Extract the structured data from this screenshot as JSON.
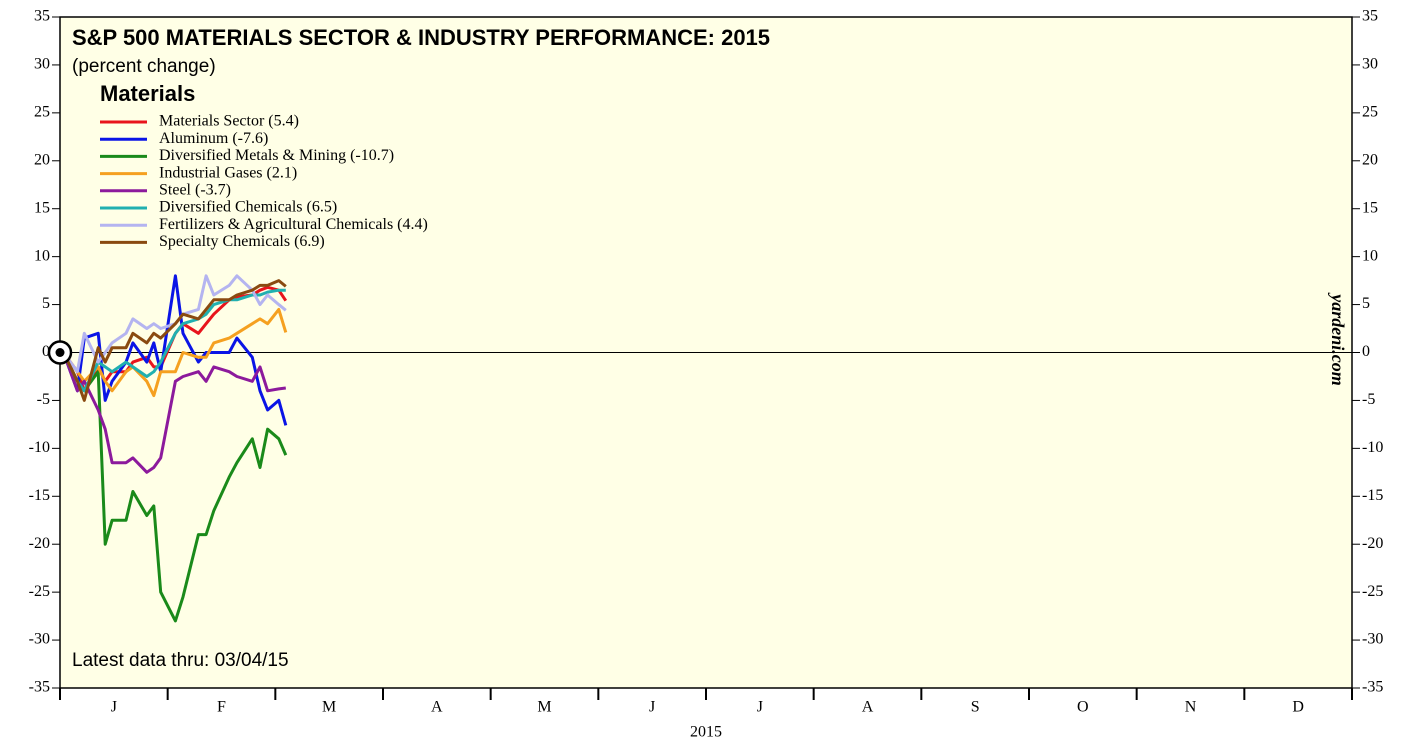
{
  "chart_data": {
    "type": "line",
    "title": "S&P 500 MATERIALS SECTOR & INDUSTRY PERFORMANCE: 2015",
    "subtitle": "(percent change)",
    "legend_title": "Materials",
    "annotation": "Latest data thru: 03/04/15",
    "watermark": "yardeni.com",
    "x_label": "2015",
    "categories": [
      "J",
      "F",
      "M",
      "A",
      "M",
      "J",
      "J",
      "A",
      "S",
      "O",
      "N",
      "D"
    ],
    "x": [
      "01/02/15",
      "01/06/15",
      "01/08/15",
      "01/12/15",
      "01/14/15",
      "01/16/15",
      "01/20/15",
      "01/22/15",
      "01/26/15",
      "01/28/15",
      "01/30/15",
      "02/03/15",
      "02/05/15",
      "02/09/15",
      "02/11/15",
      "02/13/15",
      "02/17/15",
      "02/19/15",
      "02/23/15",
      "02/25/15",
      "02/27/15",
      "03/02/15",
      "03/04/15"
    ],
    "series": [
      {
        "name": "Materials Sector (5.4)",
        "color": "#e8141c",
        "values": [
          0,
          -2,
          -4,
          -1.5,
          -3,
          -2,
          -2,
          -1,
          -0.5,
          -1.5,
          -1.5,
          2,
          3,
          2,
          3,
          4,
          5.5,
          5.8,
          6,
          6.5,
          6.8,
          6.5,
          5.4
        ]
      },
      {
        "name": "Aluminum (-7.6)",
        "color": "#0a14e6",
        "values": [
          0,
          -4,
          1.5,
          2,
          -5,
          -3,
          -1,
          1,
          -1,
          1,
          -2,
          8,
          2,
          -1,
          0,
          0,
          0,
          1.5,
          -0.5,
          -4,
          -6,
          -5,
          -7.6
        ]
      },
      {
        "name": "Diversified Metals & Mining (-10.7)",
        "color": "#1a8a1a",
        "values": [
          0,
          -3,
          -4,
          -2,
          -20,
          -17.5,
          -17.5,
          -14.5,
          -17,
          -16,
          -25,
          -28,
          -25.5,
          -19,
          -19,
          -16.5,
          -13,
          -11.5,
          -9,
          -12,
          -8,
          -9,
          -10.7
        ]
      },
      {
        "name": "Industrial Gases (2.1)",
        "color": "#f5a020",
        "values": [
          0,
          -2,
          -3,
          -1.5,
          -3,
          -4,
          -2,
          -1.5,
          -3,
          -4.5,
          -2,
          -2,
          0,
          -0.5,
          -0.5,
          1,
          1.5,
          2,
          3,
          3.5,
          3,
          4.5,
          2.1
        ]
      },
      {
        "name": "Steel (-3.7)",
        "color": "#8c1a9c",
        "values": [
          0,
          -4,
          -3,
          -6,
          -8,
          -11.5,
          -11.5,
          -11,
          -12.5,
          -12,
          -11,
          -3,
          -2.5,
          -2,
          -3,
          -1.5,
          -2,
          -2.5,
          -3,
          -1.5,
          -4,
          -3.8,
          -3.7
        ]
      },
      {
        "name": "Diversified Chemicals (6.5)",
        "color": "#20b0b0",
        "values": [
          0,
          -3,
          -4,
          -1,
          -1.5,
          -2,
          -1,
          -1.5,
          -2.5,
          -2,
          -1,
          2,
          3,
          3.5,
          4,
          5,
          5.5,
          5.5,
          6,
          6,
          6.3,
          6.5,
          6.5
        ]
      },
      {
        "name": "Fertilizers & Agricultural Chemicals (4.4)",
        "color": "#b4b4f0",
        "values": [
          0,
          -2,
          2,
          -1,
          0,
          1,
          2,
          3.5,
          2.5,
          3,
          2.5,
          3,
          4,
          4.5,
          8,
          6,
          7,
          8,
          6.5,
          5,
          6,
          5,
          4.4
        ]
      },
      {
        "name": "Specialty Chemicals (6.9)",
        "color": "#8a4a10",
        "values": [
          0,
          -3,
          -5,
          0.5,
          -1,
          0.5,
          0.5,
          2,
          1,
          2,
          1.5,
          3,
          4,
          3.5,
          4.5,
          5.5,
          5.5,
          6,
          6.5,
          7,
          7,
          7.5,
          6.9
        ]
      }
    ],
    "ylim": [
      -35,
      35
    ],
    "yticks": [
      -35,
      -30,
      -25,
      -20,
      -15,
      -10,
      -5,
      0,
      5,
      10,
      15,
      20,
      25,
      30,
      35
    ],
    "legend": "upper left",
    "background": "#ffffe6"
  }
}
